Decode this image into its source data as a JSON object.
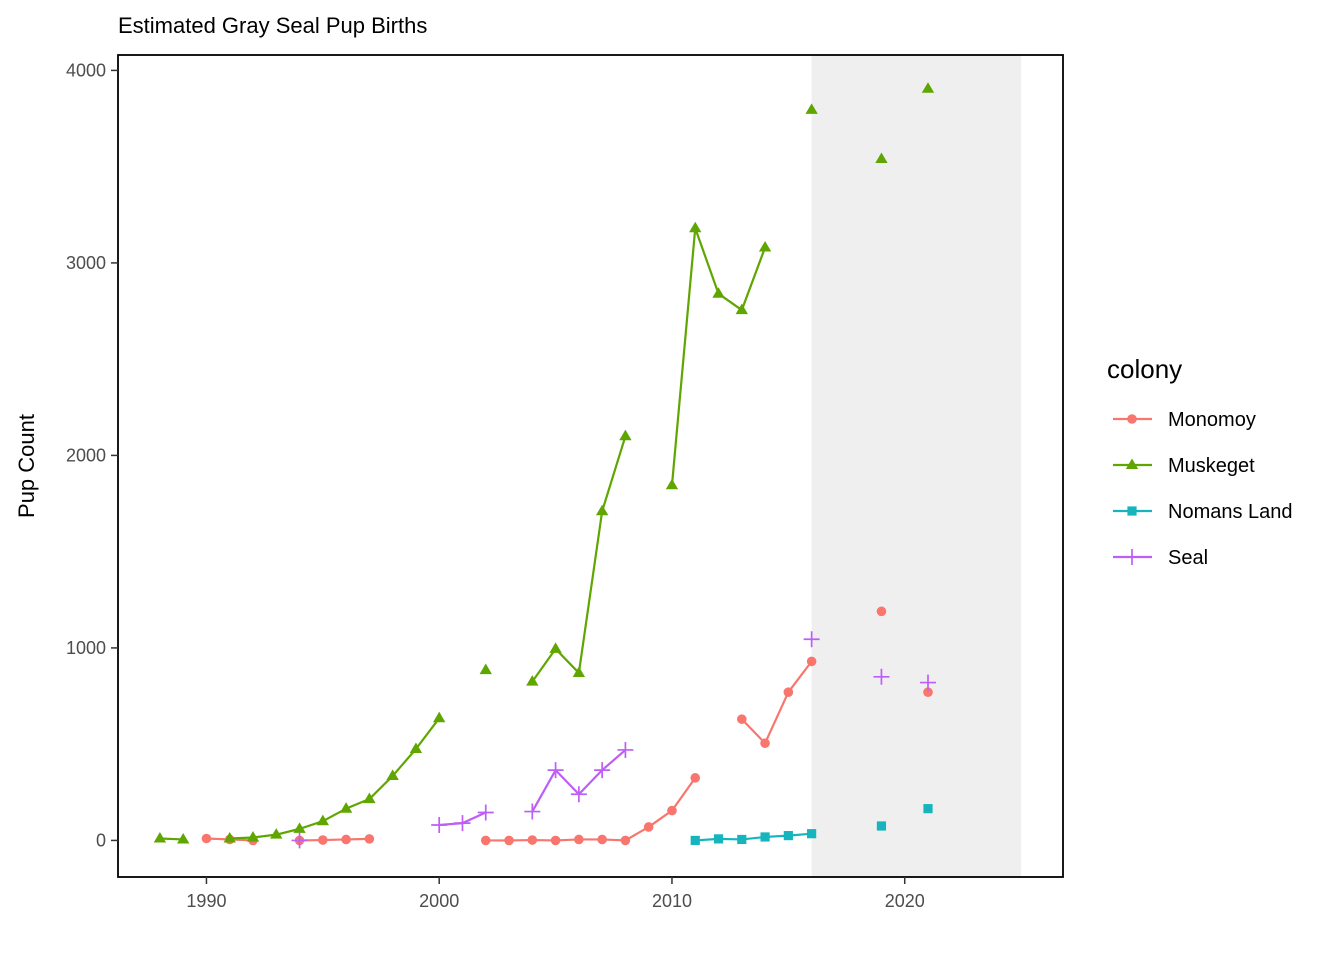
{
  "chart_data": {
    "type": "line",
    "title": "Estimated Gray Seal Pup Births",
    "xlabel": "",
    "ylabel": "Pup Count",
    "xlim": [
      1986.2,
      2026.8
    ],
    "ylim": [
      -190,
      4080
    ],
    "x_ticks": [
      1990,
      2000,
      2010,
      2020
    ],
    "y_ticks": [
      0,
      1000,
      2000,
      3000,
      4000
    ],
    "x_tick_labels": [
      "1990",
      "2000",
      "2010",
      "2020"
    ],
    "y_tick_labels": [
      "0",
      "1000",
      "2000",
      "3000",
      "4000"
    ],
    "shaded_region": {
      "x_start": 2016,
      "x_end": 2025,
      "color": "#efefef"
    },
    "grid": false,
    "legend": {
      "title": "colony",
      "placement": "right"
    },
    "series": [
      {
        "name": "Monomoy",
        "color": "#f8766d",
        "marker": "circle",
        "points": [
          [
            1990,
            10
          ],
          [
            1991,
            5
          ],
          [
            1992,
            0
          ],
          [
            1994,
            0
          ],
          [
            1995,
            2
          ],
          [
            1996,
            5
          ],
          [
            1997,
            8
          ],
          [
            2002,
            0
          ],
          [
            2003,
            0
          ],
          [
            2004,
            2
          ],
          [
            2005,
            0
          ],
          [
            2006,
            5
          ],
          [
            2007,
            5
          ],
          [
            2008,
            0
          ],
          [
            2009,
            70
          ],
          [
            2010,
            155
          ],
          [
            2011,
            325
          ],
          [
            2013,
            630
          ],
          [
            2014,
            505
          ],
          [
            2015,
            770
          ],
          [
            2016,
            930
          ],
          [
            2019,
            1190
          ],
          [
            2021,
            770
          ]
        ]
      },
      {
        "name": "Muskeget",
        "color": "#5fa600",
        "marker": "triangle",
        "points": [
          [
            1988,
            10
          ],
          [
            1989,
            5
          ],
          [
            1991,
            10
          ],
          [
            1992,
            15
          ],
          [
            1993,
            30
          ],
          [
            1994,
            60
          ],
          [
            1995,
            100
          ],
          [
            1996,
            165
          ],
          [
            1997,
            215
          ],
          [
            1998,
            335
          ],
          [
            1999,
            475
          ],
          [
            2000,
            635
          ],
          [
            2002,
            885
          ],
          [
            2004,
            825
          ],
          [
            2005,
            995
          ],
          [
            2006,
            870
          ],
          [
            2007,
            1710
          ],
          [
            2008,
            2100
          ],
          [
            2010,
            1845
          ],
          [
            2011,
            3180
          ],
          [
            2012,
            2840
          ],
          [
            2013,
            2755
          ],
          [
            2014,
            3080
          ],
          [
            2016,
            3795
          ],
          [
            2019,
            3540
          ],
          [
            2021,
            3905
          ]
        ]
      },
      {
        "name": "Nomans Land",
        "color": "#16b5be",
        "marker": "square",
        "points": [
          [
            2011,
            0
          ],
          [
            2012,
            8
          ],
          [
            2013,
            5
          ],
          [
            2014,
            18
          ],
          [
            2015,
            25
          ],
          [
            2016,
            35
          ],
          [
            2019,
            75
          ],
          [
            2021,
            165
          ]
        ]
      },
      {
        "name": "Seal",
        "color": "#bd5ef6",
        "marker": "plus",
        "points": [
          [
            1994,
            0
          ],
          [
            2000,
            80
          ],
          [
            2001,
            90
          ],
          [
            2002,
            145
          ],
          [
            2004,
            150
          ],
          [
            2005,
            365
          ],
          [
            2006,
            240
          ],
          [
            2007,
            365
          ],
          [
            2008,
            470
          ],
          [
            2016,
            1045
          ],
          [
            2019,
            850
          ],
          [
            2021,
            820
          ]
        ]
      }
    ]
  }
}
